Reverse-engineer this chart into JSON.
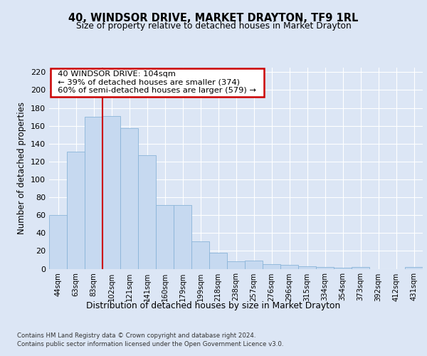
{
  "title": "40, WINDSOR DRIVE, MARKET DRAYTON, TF9 1RL",
  "subtitle": "Size of property relative to detached houses in Market Drayton",
  "xlabel": "Distribution of detached houses by size in Market Drayton",
  "ylabel": "Number of detached properties",
  "categories": [
    "44sqm",
    "63sqm",
    "83sqm",
    "102sqm",
    "121sqm",
    "141sqm",
    "160sqm",
    "179sqm",
    "199sqm",
    "218sqm",
    "238sqm",
    "257sqm",
    "276sqm",
    "296sqm",
    "315sqm",
    "334sqm",
    "354sqm",
    "373sqm",
    "392sqm",
    "412sqm",
    "431sqm"
  ],
  "values": [
    60,
    131,
    170,
    171,
    157,
    127,
    71,
    71,
    31,
    18,
    8,
    9,
    5,
    4,
    3,
    2,
    1,
    2,
    0,
    0,
    2
  ],
  "bar_color": "#c6d9f0",
  "bar_edge_color": "#8ab4d8",
  "vline_x_index": 3,
  "vline_color": "#cc0000",
  "annotation_text": "  40 WINDSOR DRIVE: 104sqm  \n  ← 39% of detached houses are smaller (374)  \n  60% of semi-detached houses are larger (579) →  ",
  "annotation_box_color": "#ffffff",
  "annotation_box_edge_color": "#cc0000",
  "ylim": [
    0,
    225
  ],
  "yticks": [
    0,
    20,
    40,
    60,
    80,
    100,
    120,
    140,
    160,
    180,
    200,
    220
  ],
  "background_color": "#dce6f5",
  "plot_bg_color": "#dce6f5",
  "grid_color": "#ffffff",
  "footer_line1": "Contains HM Land Registry data © Crown copyright and database right 2024.",
  "footer_line2": "Contains public sector information licensed under the Open Government Licence v3.0."
}
